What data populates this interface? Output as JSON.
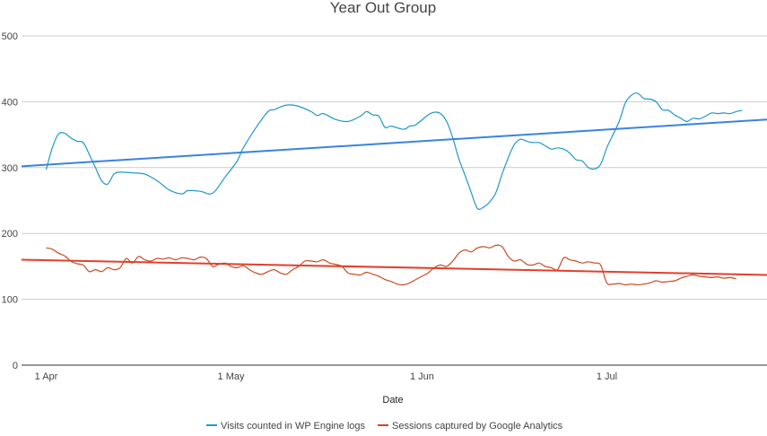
{
  "chart_data": {
    "type": "line",
    "title": "Year Out Group",
    "xlabel": "Date",
    "ylabel": "",
    "ylim": [
      0,
      500
    ],
    "y_ticks": [
      0,
      100,
      200,
      300,
      400,
      500
    ],
    "x_range": [
      "2018-03-28",
      "2018-07-27"
    ],
    "x_ticks": [
      {
        "date": "2018-04-01",
        "label": "1 Apr"
      },
      {
        "date": "2018-05-01",
        "label": "1 May"
      },
      {
        "date": "2018-06-01",
        "label": "1 Jun"
      },
      {
        "date": "2018-07-01",
        "label": "1 Jul"
      }
    ],
    "grid": true,
    "legend_position": "bottom",
    "series": [
      {
        "name": "Visits counted in WP Engine logs",
        "color": "#1f98c7",
        "points": [
          [
            "2018-04-01",
            297
          ],
          [
            "2018-04-02",
            330
          ],
          [
            "2018-04-03",
            351
          ],
          [
            "2018-04-04",
            352
          ],
          [
            "2018-04-05",
            345
          ],
          [
            "2018-04-06",
            340
          ],
          [
            "2018-04-07",
            338
          ],
          [
            "2018-04-08",
            320
          ],
          [
            "2018-04-09",
            300
          ],
          [
            "2018-04-10",
            280
          ],
          [
            "2018-04-11",
            275
          ],
          [
            "2018-04-12",
            290
          ],
          [
            "2018-04-13",
            293
          ],
          [
            "2018-04-15",
            292
          ],
          [
            "2018-04-17",
            290
          ],
          [
            "2018-04-19",
            280
          ],
          [
            "2018-04-21",
            266
          ],
          [
            "2018-04-23",
            260
          ],
          [
            "2018-04-24",
            265
          ],
          [
            "2018-04-26",
            264
          ],
          [
            "2018-04-28",
            261
          ],
          [
            "2018-04-30",
            285
          ],
          [
            "2018-05-02",
            310
          ],
          [
            "2018-05-03",
            330
          ],
          [
            "2018-05-05",
            360
          ],
          [
            "2018-05-07",
            385
          ],
          [
            "2018-05-08",
            388
          ],
          [
            "2018-05-10",
            395
          ],
          [
            "2018-05-12",
            393
          ],
          [
            "2018-05-14",
            385
          ],
          [
            "2018-05-15",
            379
          ],
          [
            "2018-05-16",
            382
          ],
          [
            "2018-05-18",
            373
          ],
          [
            "2018-05-20",
            370
          ],
          [
            "2018-05-22",
            378
          ],
          [
            "2018-05-23",
            385
          ],
          [
            "2018-05-24",
            380
          ],
          [
            "2018-05-25",
            378
          ],
          [
            "2018-05-26",
            361
          ],
          [
            "2018-05-27",
            363
          ],
          [
            "2018-05-29",
            358
          ],
          [
            "2018-05-30",
            363
          ],
          [
            "2018-05-31",
            365
          ],
          [
            "2018-06-02",
            380
          ],
          [
            "2018-06-03",
            384
          ],
          [
            "2018-06-04",
            382
          ],
          [
            "2018-06-05",
            370
          ],
          [
            "2018-06-06",
            345
          ],
          [
            "2018-06-07",
            313
          ],
          [
            "2018-06-08",
            288
          ],
          [
            "2018-06-09",
            262
          ],
          [
            "2018-06-10",
            238
          ],
          [
            "2018-06-11",
            240
          ],
          [
            "2018-06-12",
            248
          ],
          [
            "2018-06-13",
            262
          ],
          [
            "2018-06-14",
            290
          ],
          [
            "2018-06-15",
            315
          ],
          [
            "2018-06-16",
            335
          ],
          [
            "2018-06-17",
            343
          ],
          [
            "2018-06-18",
            340
          ],
          [
            "2018-06-19",
            338
          ],
          [
            "2018-06-20",
            338
          ],
          [
            "2018-06-21",
            333
          ],
          [
            "2018-06-22",
            328
          ],
          [
            "2018-06-23",
            330
          ],
          [
            "2018-06-24",
            328
          ],
          [
            "2018-06-25",
            322
          ],
          [
            "2018-06-26",
            312
          ],
          [
            "2018-06-27",
            310
          ],
          [
            "2018-06-28",
            300
          ],
          [
            "2018-06-29",
            298
          ],
          [
            "2018-06-30",
            305
          ],
          [
            "2018-07-01",
            330
          ],
          [
            "2018-07-02",
            350
          ],
          [
            "2018-07-03",
            370
          ],
          [
            "2018-07-04",
            398
          ],
          [
            "2018-07-05",
            410
          ],
          [
            "2018-07-06",
            413
          ],
          [
            "2018-07-07",
            405
          ],
          [
            "2018-07-08",
            404
          ],
          [
            "2018-07-09",
            400
          ],
          [
            "2018-07-10",
            388
          ],
          [
            "2018-07-11",
            387
          ],
          [
            "2018-07-12",
            380
          ],
          [
            "2018-07-13",
            375
          ],
          [
            "2018-07-14",
            370
          ],
          [
            "2018-07-15",
            375
          ],
          [
            "2018-07-16",
            374
          ],
          [
            "2018-07-17",
            378
          ],
          [
            "2018-07-18",
            383
          ],
          [
            "2018-07-19",
            382
          ],
          [
            "2018-07-20",
            383
          ],
          [
            "2018-07-21",
            382
          ],
          [
            "2018-07-22",
            385
          ],
          [
            "2018-07-23",
            387
          ]
        ]
      },
      {
        "name": "Sessions captured by Google Analytics",
        "color": "#cc4a20",
        "points": [
          [
            "2018-04-01",
            178
          ],
          [
            "2018-04-02",
            176
          ],
          [
            "2018-04-03",
            170
          ],
          [
            "2018-04-04",
            166
          ],
          [
            "2018-04-05",
            158
          ],
          [
            "2018-04-06",
            154
          ],
          [
            "2018-04-07",
            152
          ],
          [
            "2018-04-08",
            142
          ],
          [
            "2018-04-09",
            145
          ],
          [
            "2018-04-10",
            142
          ],
          [
            "2018-04-11",
            148
          ],
          [
            "2018-04-12",
            145
          ],
          [
            "2018-04-13",
            148
          ],
          [
            "2018-04-14",
            162
          ],
          [
            "2018-04-15",
            155
          ],
          [
            "2018-04-16",
            165
          ],
          [
            "2018-04-17",
            160
          ],
          [
            "2018-04-18",
            158
          ],
          [
            "2018-04-19",
            162
          ],
          [
            "2018-04-20",
            161
          ],
          [
            "2018-04-21",
            163
          ],
          [
            "2018-04-22",
            160
          ],
          [
            "2018-04-23",
            163
          ],
          [
            "2018-04-24",
            162
          ],
          [
            "2018-04-25",
            160
          ],
          [
            "2018-04-26",
            164
          ],
          [
            "2018-04-27",
            162
          ],
          [
            "2018-04-28",
            150
          ],
          [
            "2018-04-29",
            153
          ],
          [
            "2018-04-30",
            155
          ],
          [
            "2018-05-01",
            150
          ],
          [
            "2018-05-02",
            148
          ],
          [
            "2018-05-03",
            151
          ],
          [
            "2018-05-04",
            145
          ],
          [
            "2018-05-05",
            140
          ],
          [
            "2018-05-06",
            138
          ],
          [
            "2018-05-07",
            142
          ],
          [
            "2018-05-08",
            145
          ],
          [
            "2018-05-09",
            140
          ],
          [
            "2018-05-10",
            138
          ],
          [
            "2018-05-11",
            145
          ],
          [
            "2018-05-12",
            150
          ],
          [
            "2018-05-13",
            158
          ],
          [
            "2018-05-14",
            158
          ],
          [
            "2018-05-15",
            157
          ],
          [
            "2018-05-16",
            160
          ],
          [
            "2018-05-17",
            155
          ],
          [
            "2018-05-18",
            153
          ],
          [
            "2018-05-19",
            150
          ],
          [
            "2018-05-20",
            140
          ],
          [
            "2018-05-21",
            138
          ],
          [
            "2018-05-22",
            137
          ],
          [
            "2018-05-23",
            141
          ],
          [
            "2018-05-24",
            138
          ],
          [
            "2018-05-25",
            135
          ],
          [
            "2018-05-26",
            130
          ],
          [
            "2018-05-27",
            127
          ],
          [
            "2018-05-28",
            123
          ],
          [
            "2018-05-29",
            122
          ],
          [
            "2018-05-30",
            125
          ],
          [
            "2018-05-31",
            130
          ],
          [
            "2018-06-01",
            135
          ],
          [
            "2018-06-02",
            140
          ],
          [
            "2018-06-03",
            148
          ],
          [
            "2018-06-04",
            152
          ],
          [
            "2018-06-05",
            150
          ],
          [
            "2018-06-06",
            158
          ],
          [
            "2018-06-07",
            170
          ],
          [
            "2018-06-08",
            175
          ],
          [
            "2018-06-09",
            172
          ],
          [
            "2018-06-10",
            178
          ],
          [
            "2018-06-11",
            180
          ],
          [
            "2018-06-12",
            178
          ],
          [
            "2018-06-13",
            182
          ],
          [
            "2018-06-14",
            180
          ],
          [
            "2018-06-15",
            165
          ],
          [
            "2018-06-16",
            158
          ],
          [
            "2018-06-17",
            160
          ],
          [
            "2018-06-18",
            153
          ],
          [
            "2018-06-19",
            152
          ],
          [
            "2018-06-20",
            155
          ],
          [
            "2018-06-21",
            150
          ],
          [
            "2018-06-22",
            148
          ],
          [
            "2018-06-23",
            145
          ],
          [
            "2018-06-24",
            163
          ],
          [
            "2018-06-25",
            160
          ],
          [
            "2018-06-26",
            158
          ],
          [
            "2018-06-27",
            155
          ],
          [
            "2018-06-28",
            157
          ],
          [
            "2018-06-29",
            155
          ],
          [
            "2018-06-30",
            152
          ],
          [
            "2018-07-01",
            125
          ],
          [
            "2018-07-02",
            123
          ],
          [
            "2018-07-03",
            124
          ],
          [
            "2018-07-04",
            122
          ],
          [
            "2018-07-05",
            123
          ],
          [
            "2018-07-06",
            122
          ],
          [
            "2018-07-07",
            123
          ],
          [
            "2018-07-08",
            125
          ],
          [
            "2018-07-09",
            128
          ],
          [
            "2018-07-10",
            126
          ],
          [
            "2018-07-11",
            127
          ],
          [
            "2018-07-12",
            128
          ],
          [
            "2018-07-13",
            132
          ],
          [
            "2018-07-14",
            135
          ],
          [
            "2018-07-15",
            137
          ],
          [
            "2018-07-16",
            135
          ],
          [
            "2018-07-17",
            134
          ],
          [
            "2018-07-18",
            133
          ],
          [
            "2018-07-19",
            134
          ],
          [
            "2018-07-20",
            132
          ],
          [
            "2018-07-21",
            133
          ],
          [
            "2018-07-22",
            131
          ]
        ]
      }
    ],
    "trendlines": [
      {
        "series": "Visits counted in WP Engine logs",
        "color": "#3a82e4",
        "points": [
          [
            "2018-03-28",
            302
          ],
          [
            "2018-07-27",
            373
          ]
        ]
      },
      {
        "series": "Sessions captured by Google Analytics",
        "color": "#e23f2b",
        "points": [
          [
            "2018-03-28",
            160
          ],
          [
            "2018-07-27",
            137
          ]
        ]
      }
    ]
  }
}
